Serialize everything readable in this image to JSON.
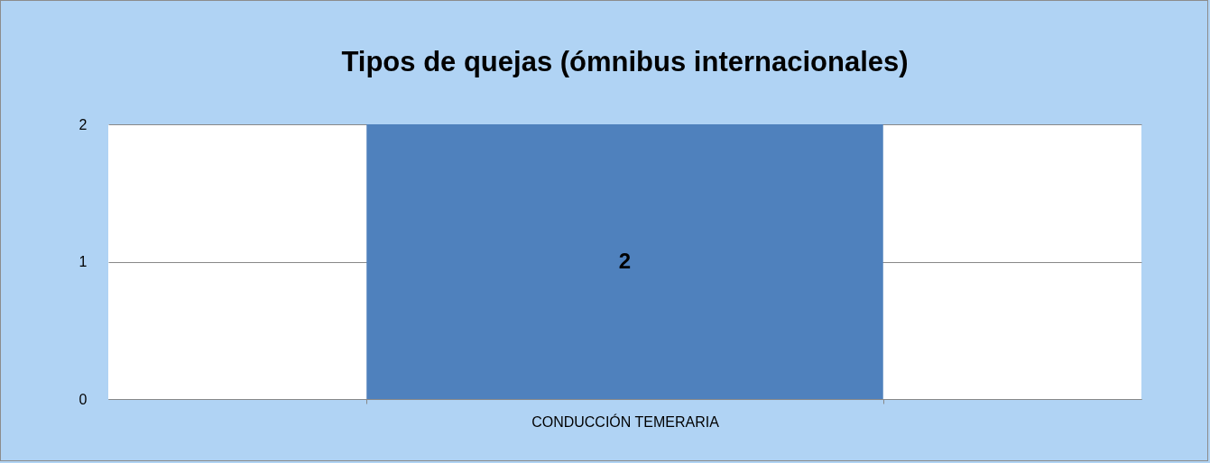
{
  "chart_data": {
    "type": "bar",
    "title": "Tipos de quejas (ómnibus internacionales)",
    "categories": [
      "CONDUCCIÓN TEMERARIA"
    ],
    "values": [
      2
    ],
    "color": "#4f81bd",
    "ylim": [
      0,
      2
    ],
    "yticks": [
      0,
      1,
      2
    ],
    "grid": "y",
    "data_labels": true
  }
}
